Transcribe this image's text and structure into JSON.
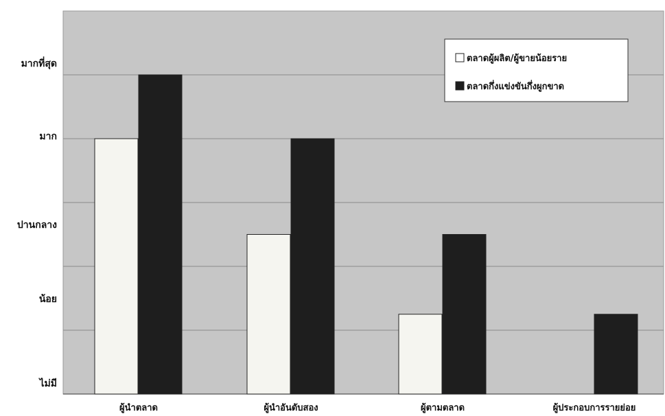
{
  "chart_data": {
    "type": "bar",
    "categories": [
      "ผู้นำตลาด",
      "ผู้นำอันดับสอง",
      "ผู้ตามตลาด",
      "ผู้ประกอบการรายย่อย"
    ],
    "y_tick_labels": [
      "ไม่มี",
      "น้อย",
      "ปานกลาง",
      "มาก",
      "มากที่สุด"
    ],
    "ylim": [
      0,
      5
    ],
    "grid": true,
    "legend_position": "top-right",
    "series": [
      {
        "name": "ตลาดผู้ผลิต/ผู้ขายน้อยราย",
        "values": [
          4,
          2.5,
          1.25,
          0
        ],
        "color": "#f5f5f0"
      },
      {
        "name": "ตลาดกึ่งแข่งขันกึ่งผูกขาด",
        "values": [
          5,
          4,
          2.5,
          1.25
        ],
        "color": "#1e1e1e"
      }
    ]
  }
}
